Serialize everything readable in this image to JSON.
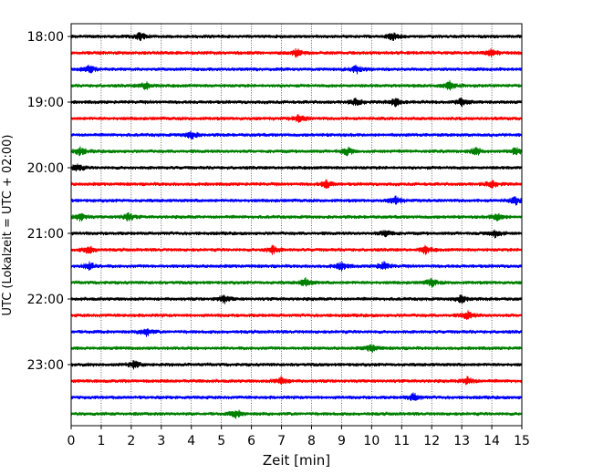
{
  "chart_data": {
    "type": "line",
    "title": "",
    "xlabel": "Zeit  [min]",
    "ylabel": "UTC (Lokalzeit = UTC + 02:00)",
    "xlim": [
      0,
      15
    ],
    "x_ticks": [
      "0",
      "1",
      "2",
      "3",
      "4",
      "5",
      "6",
      "7",
      "8",
      "9",
      "10",
      "11",
      "12",
      "13",
      "14",
      "15"
    ],
    "y_ticks": [
      "18:00",
      "19:00",
      "20:00",
      "21:00",
      "22:00",
      "23:00"
    ],
    "grid": "vertical dotted at each minute",
    "traces": [
      {
        "start": "18:00",
        "color": "#000000",
        "events": [
          2.3,
          10.7
        ]
      },
      {
        "start": "18:15",
        "color": "#ff0000",
        "events": [
          7.5,
          14.0
        ]
      },
      {
        "start": "18:30",
        "color": "#0000ff",
        "events": [
          0.6,
          9.5
        ]
      },
      {
        "start": "18:45",
        "color": "#008000",
        "events": [
          2.5,
          12.6
        ]
      },
      {
        "start": "19:00",
        "color": "#000000",
        "events": [
          9.5,
          10.8,
          13.0
        ]
      },
      {
        "start": "19:15",
        "color": "#ff0000",
        "events": [
          7.6
        ]
      },
      {
        "start": "19:30",
        "color": "#0000ff",
        "events": [
          4.0
        ]
      },
      {
        "start": "19:45",
        "color": "#008000",
        "events": [
          0.3,
          9.2,
          13.5,
          14.8
        ]
      },
      {
        "start": "20:00",
        "color": "#000000",
        "events": [
          0.2
        ]
      },
      {
        "start": "20:15",
        "color": "#ff0000",
        "events": [
          8.5,
          14.0
        ]
      },
      {
        "start": "20:30",
        "color": "#0000ff",
        "events": [
          10.8,
          14.8
        ]
      },
      {
        "start": "20:45",
        "color": "#008000",
        "events": [
          0.3,
          1.9,
          14.2
        ]
      },
      {
        "start": "21:00",
        "color": "#000000",
        "events": [
          10.5,
          14.1
        ]
      },
      {
        "start": "21:15",
        "color": "#ff0000",
        "events": [
          0.6,
          6.7,
          11.8
        ]
      },
      {
        "start": "21:30",
        "color": "#0000ff",
        "events": [
          0.6,
          9.0,
          10.4
        ]
      },
      {
        "start": "21:45",
        "color": "#008000",
        "events": [
          7.8,
          12.0
        ]
      },
      {
        "start": "22:00",
        "color": "#000000",
        "events": [
          5.1,
          13.0
        ]
      },
      {
        "start": "22:15",
        "color": "#ff0000",
        "events": [
          13.2
        ]
      },
      {
        "start": "22:30",
        "color": "#0000ff",
        "events": [
          2.5
        ]
      },
      {
        "start": "22:45",
        "color": "#008000",
        "events": [
          10.0
        ]
      },
      {
        "start": "23:00",
        "color": "#000000",
        "events": [
          2.1
        ]
      },
      {
        "start": "23:15",
        "color": "#ff0000",
        "events": [
          7.0,
          13.2
        ]
      },
      {
        "start": "23:30",
        "color": "#0000ff",
        "events": [
          11.4
        ]
      },
      {
        "start": "23:45",
        "color": "#008000",
        "events": [
          5.5
        ]
      }
    ]
  }
}
